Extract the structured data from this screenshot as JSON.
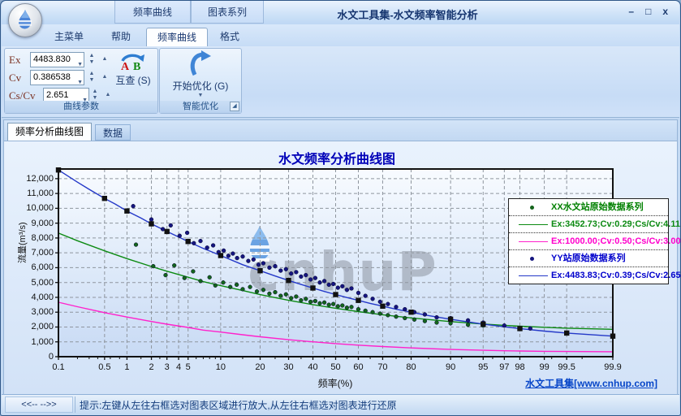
{
  "window": {
    "title": "水文工具集-水文频率智能分析",
    "controls": {
      "minimize": "–",
      "maximize": "□",
      "close": "x"
    }
  },
  "titlebar_context_groups": [
    {
      "label": "频率曲线"
    },
    {
      "label": "图表系列"
    }
  ],
  "ribbon": {
    "tabs": [
      {
        "label": "主菜单"
      },
      {
        "label": "帮助"
      },
      {
        "label": "频率曲线",
        "active": true
      },
      {
        "label": "格式"
      }
    ],
    "groups": [
      {
        "title": "曲线参数",
        "params": [
          {
            "label": "Ex",
            "value": "4483.830"
          },
          {
            "label": "Cv",
            "value": "0.386538"
          },
          {
            "label": "Cs/Cv",
            "value": "2.651"
          }
        ],
        "button": {
          "label": "互查 (S)",
          "icon_a": "A",
          "icon_b": "B"
        }
      },
      {
        "title": "智能优化",
        "button": {
          "label": "开始优化 (G)"
        }
      }
    ]
  },
  "doc_tabs": [
    {
      "label": "频率分析曲线图",
      "active": true
    },
    {
      "label": "数据"
    }
  ],
  "chart_footer": {
    "site_link": "水文工具集[www.cnhup.com]",
    "watermark": "cnhuP"
  },
  "status_bar": {
    "nav": "<<--  -->>",
    "hint": "提示:左键从左往右框选对图表区域进行放大,从左往右框选对图表进行还原"
  },
  "chart_data": {
    "type": "line",
    "title": "水文频率分析曲线图",
    "xlabel": "频率(%)",
    "ylabel": "流量(m³/s)",
    "x_scale": "normal-probability",
    "x_ticks": [
      0.1,
      0.5,
      1,
      2,
      3,
      4,
      5,
      10,
      20,
      30,
      40,
      50,
      60,
      70,
      80,
      90,
      95,
      97,
      98,
      99,
      99.5,
      99.9
    ],
    "xlim": [
      0.1,
      99.9
    ],
    "ylim": [
      0,
      12650
    ],
    "y_tick_step": 1000,
    "grid": true,
    "colors": {
      "xx_scatter": "#14641c",
      "xx_fit": "#0c8a12",
      "test_fit": "#ff22cc",
      "yy_scatter": "#15157f",
      "yy_fit": "#2438c8",
      "yy_fit_marker": "#111111"
    },
    "series": [
      {
        "name": "XX水文站原始数据系列",
        "type": "scatter",
        "color": "#14641c",
        "points": [
          [
            1.3,
            7550
          ],
          [
            2.1,
            6100
          ],
          [
            2.9,
            5500
          ],
          [
            3.6,
            6150
          ],
          [
            4.6,
            5300
          ],
          [
            5.6,
            5750
          ],
          [
            6.6,
            5100
          ],
          [
            8,
            5350
          ],
          [
            9,
            4800
          ],
          [
            10.5,
            5000
          ],
          [
            12,
            4700
          ],
          [
            13.5,
            4850
          ],
          [
            15,
            4550
          ],
          [
            17,
            4700
          ],
          [
            19,
            4400
          ],
          [
            21,
            4500
          ],
          [
            23,
            4250
          ],
          [
            25,
            4350
          ],
          [
            27,
            4100
          ],
          [
            29,
            4200
          ],
          [
            31,
            3950
          ],
          [
            33,
            4050
          ],
          [
            35,
            3800
          ],
          [
            37,
            3900
          ],
          [
            39,
            3700
          ],
          [
            41,
            3750
          ],
          [
            43,
            3600
          ],
          [
            45,
            3650
          ],
          [
            47,
            3500
          ],
          [
            49,
            3550
          ],
          [
            51,
            3400
          ],
          [
            53,
            3450
          ],
          [
            55,
            3300
          ],
          [
            57,
            3350
          ],
          [
            60,
            3200
          ],
          [
            63,
            3100
          ],
          [
            66,
            3000
          ],
          [
            69,
            2900
          ],
          [
            72,
            2800
          ],
          [
            75,
            2700
          ],
          [
            78,
            2600
          ],
          [
            81,
            2500
          ],
          [
            84,
            2400
          ],
          [
            87,
            2300
          ],
          [
            90,
            2250
          ],
          [
            93,
            2150
          ],
          [
            95,
            2100
          ]
        ]
      },
      {
        "name": "Ex:3452.73;Cv:0.29;Cs/Cv:4.11",
        "type": "line",
        "color": "#0c8a12",
        "points": [
          [
            0.1,
            8330
          ],
          [
            0.2,
            7816
          ],
          [
            0.5,
            7134
          ],
          [
            1,
            6610
          ],
          [
            2,
            6079
          ],
          [
            3,
            5763
          ],
          [
            5,
            5357
          ],
          [
            7,
            5060
          ],
          [
            10,
            4787
          ],
          [
            15,
            4460
          ],
          [
            20,
            4182
          ],
          [
            25,
            3980
          ],
          [
            30,
            3800
          ],
          [
            40,
            3508
          ],
          [
            50,
            3262
          ],
          [
            60,
            3040
          ],
          [
            70,
            2828
          ],
          [
            80,
            2611
          ],
          [
            90,
            2364
          ],
          [
            95,
            2200
          ],
          [
            97,
            2112
          ],
          [
            98,
            2056
          ],
          [
            99,
            1981
          ],
          [
            99.5,
            1924
          ],
          [
            99.9,
            1843
          ]
        ]
      },
      {
        "name": "Ex:1000.00;Cv:0.50;Cs/Cv:3.00",
        "type": "line",
        "color": "#ff22cc",
        "points": [
          [
            0.1,
            3667
          ],
          [
            0.2,
            3367
          ],
          [
            0.5,
            2970
          ],
          [
            1,
            2670
          ],
          [
            2,
            2370
          ],
          [
            3,
            2193
          ],
          [
            5,
            1969
          ],
          [
            7,
            1790
          ],
          [
            10,
            1660
          ],
          [
            15,
            1480
          ],
          [
            20,
            1342
          ],
          [
            30,
            1147
          ],
          [
            40,
            1002
          ],
          [
            50,
            883
          ],
          [
            60,
            779
          ],
          [
            70,
            683
          ],
          [
            80,
            590
          ],
          [
            90,
            490
          ],
          [
            95,
            431
          ],
          [
            97,
            401
          ],
          [
            98,
            384
          ],
          [
            99,
            363
          ],
          [
            99.5,
            350
          ],
          [
            99.9,
            336
          ]
        ]
      },
      {
        "name": "YY站原始数据系列",
        "type": "scatter",
        "color": "#15157f",
        "points": [
          [
            1.2,
            10150
          ],
          [
            2.0,
            9250
          ],
          [
            2.7,
            8600
          ],
          [
            3.3,
            8850
          ],
          [
            4.1,
            8150
          ],
          [
            4.9,
            8350
          ],
          [
            5.7,
            7650
          ],
          [
            6.6,
            7800
          ],
          [
            7.6,
            7350
          ],
          [
            8.6,
            7500
          ],
          [
            9.6,
            7050
          ],
          [
            10.6,
            7150
          ],
          [
            11.6,
            6800
          ],
          [
            12.6,
            6950
          ],
          [
            13.6,
            6650
          ],
          [
            15,
            6750
          ],
          [
            16.5,
            6450
          ],
          [
            18,
            6550
          ],
          [
            19.5,
            6200
          ],
          [
            21,
            6300
          ],
          [
            23,
            6000
          ],
          [
            25,
            6100
          ],
          [
            27,
            5800
          ],
          [
            29,
            5900
          ],
          [
            31,
            5600
          ],
          [
            33,
            5700
          ],
          [
            35,
            5400
          ],
          [
            37,
            5500
          ],
          [
            39,
            5200
          ],
          [
            41,
            5300
          ],
          [
            43,
            5000
          ],
          [
            45,
            5100
          ],
          [
            47,
            4850
          ],
          [
            49,
            4900
          ],
          [
            51,
            4650
          ],
          [
            53,
            4750
          ],
          [
            55,
            4500
          ],
          [
            57,
            4600
          ],
          [
            60,
            4300
          ],
          [
            63,
            4100
          ],
          [
            66,
            3900
          ],
          [
            69,
            3700
          ],
          [
            72,
            3550
          ],
          [
            75,
            3350
          ],
          [
            78,
            3200
          ],
          [
            81,
            3000
          ],
          [
            84,
            2850
          ],
          [
            87,
            2650
          ],
          [
            90,
            2600
          ],
          [
            93,
            2450
          ],
          [
            95,
            2300
          ],
          [
            97,
            2100
          ],
          [
            98.5,
            1900
          ]
        ]
      },
      {
        "name": "Ex:4483.83;Cv:0.39;Cs/Cv:2.65",
        "type": "line",
        "color": "#2438c8",
        "points": [
          [
            0.1,
            12582
          ],
          [
            0.2,
            11764
          ],
          [
            0.3,
            11280
          ],
          [
            0.5,
            10667
          ],
          [
            0.7,
            10290
          ],
          [
            1,
            9821
          ],
          [
            1.5,
            9340
          ],
          [
            2,
            8956
          ],
          [
            3,
            8438
          ],
          [
            4,
            8070
          ],
          [
            5,
            7767
          ],
          [
            7,
            7300
          ],
          [
            10,
            6817
          ],
          [
            15,
            6200
          ],
          [
            20,
            5795
          ],
          [
            25,
            5440
          ],
          [
            30,
            5138
          ],
          [
            35,
            4870
          ],
          [
            40,
            4628
          ],
          [
            45,
            4400
          ],
          [
            50,
            4191
          ],
          [
            55,
            3985
          ],
          [
            60,
            3793
          ],
          [
            65,
            3595
          ],
          [
            70,
            3406
          ],
          [
            75,
            3200
          ],
          [
            80,
            3002
          ],
          [
            85,
            2770
          ],
          [
            90,
            2525
          ],
          [
            95,
            2197
          ],
          [
            97,
            2014
          ],
          [
            98,
            1893
          ],
          [
            99,
            1725
          ],
          [
            99.5,
            1594
          ],
          [
            99.9,
            1384
          ]
        ],
        "marker": {
          "shape": "square",
          "color": "#111111",
          "points": [
            [
              0.1,
              12582
            ],
            [
              0.5,
              10667
            ],
            [
              1,
              9821
            ],
            [
              2,
              8956
            ],
            [
              3,
              8438
            ],
            [
              5,
              7767
            ],
            [
              10,
              6817
            ],
            [
              20,
              5795
            ],
            [
              30,
              5138
            ],
            [
              40,
              4628
            ],
            [
              50,
              4191
            ],
            [
              60,
              3793
            ],
            [
              70,
              3406
            ],
            [
              80,
              3002
            ],
            [
              90,
              2525
            ],
            [
              95,
              2197
            ],
            [
              98,
              1893
            ],
            [
              99.5,
              1594
            ],
            [
              99.9,
              1384
            ]
          ]
        }
      }
    ],
    "legend": {
      "position": "top-right",
      "entries": [
        {
          "marker": "dot",
          "color": "#008000",
          "marker_color": "#14641c",
          "text": "XX水文站原始数据系列"
        },
        {
          "marker": "line",
          "color": "#0c8a12",
          "marker_color": "#0c8a12",
          "text": "Ex:3452.73;Cv:0.29;Cs/Cv:4.11"
        },
        {
          "marker": "line",
          "color": "#ff00cc",
          "marker_color": "#ff22cc",
          "text": "Ex:1000.00;Cv:0.50;Cs/Cv:3.00"
        },
        {
          "marker": "dot",
          "color": "#0000cc",
          "marker_color": "#15157f",
          "text": "YY站原始数据系列"
        },
        {
          "marker": "line",
          "color": "#0000cc",
          "marker_color": "#2438c8",
          "text": "Ex:4483.83;Cv:0.39;Cs/Cv:2.65"
        }
      ]
    }
  }
}
